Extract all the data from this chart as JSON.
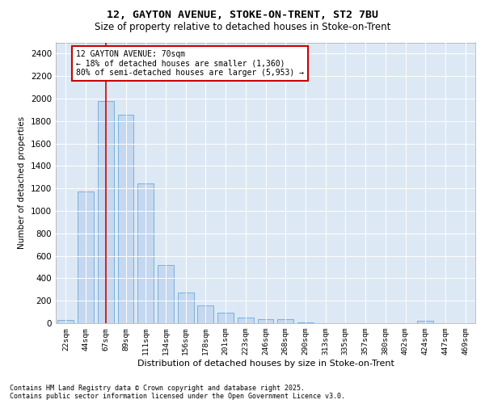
{
  "title_line1": "12, GAYTON AVENUE, STOKE-ON-TRENT, ST2 7BU",
  "title_line2": "Size of property relative to detached houses in Stoke-on-Trent",
  "xlabel": "Distribution of detached houses by size in Stoke-on-Trent",
  "ylabel": "Number of detached properties",
  "categories": [
    "22sqm",
    "44sqm",
    "67sqm",
    "89sqm",
    "111sqm",
    "134sqm",
    "156sqm",
    "178sqm",
    "201sqm",
    "223sqm",
    "246sqm",
    "268sqm",
    "290sqm",
    "313sqm",
    "335sqm",
    "357sqm",
    "380sqm",
    "402sqm",
    "424sqm",
    "447sqm",
    "469sqm"
  ],
  "values": [
    28,
    1170,
    1975,
    1855,
    1245,
    515,
    275,
    155,
    95,
    50,
    38,
    35,
    5,
    2,
    1,
    1,
    1,
    1,
    20,
    1,
    1
  ],
  "bar_color": "#c5d8f0",
  "bar_edge_color": "#6aaad4",
  "bg_color": "#dde8f5",
  "vline_x_index": 2,
  "vline_color": "#cc0000",
  "annotation_text": "12 GAYTON AVENUE: 70sqm\n← 18% of detached houses are smaller (1,360)\n80% of semi-detached houses are larger (5,953) →",
  "annotation_box_color": "#cc0000",
  "ylim": [
    0,
    2500
  ],
  "yticks": [
    0,
    200,
    400,
    600,
    800,
    1000,
    1200,
    1400,
    1600,
    1800,
    2000,
    2200,
    2400
  ],
  "footer_line1": "Contains HM Land Registry data © Crown copyright and database right 2025.",
  "footer_line2": "Contains public sector information licensed under the Open Government Licence v3.0."
}
